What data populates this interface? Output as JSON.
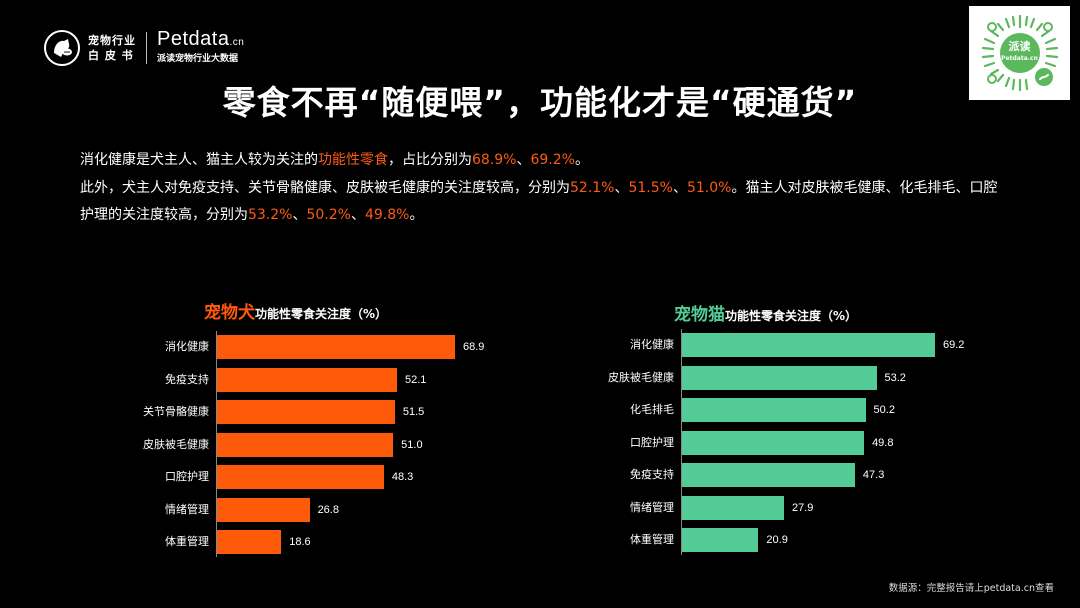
{
  "header": {
    "logo_line1": "宠物行业",
    "logo_line2": "白 皮 书",
    "brand_name": "Petdata",
    "brand_tld": ".cn",
    "brand_sub": "派读宠物行业大数据",
    "qr_label": "派读",
    "qr_sub": "Petdata.cn"
  },
  "title": "零食不再“随便喂”，功能化才是“硬通货”",
  "description": {
    "l1_a": "消化健康是犬主人、猫主人较为关注的",
    "l1_hl": "功能性零食",
    "l1_b": "，占比分别为",
    "l1_v1": "68.9%",
    "l1_sep": "、",
    "l1_v2": "69.2%",
    "l1_end": "。",
    "l2_a": "此外，犬主人对免疫支持、关节骨骼健康、皮肤被毛健康的关注度较高，分别为",
    "l2_v1": "52.1%",
    "l2_sep1": "、",
    "l2_v2": "51.5%",
    "l2_sep2": "、",
    "l2_v3": "51.0%",
    "l2_b": "。猫主人对皮肤被毛健康、化毛排毛、口腔护理的关注度较高，分别为",
    "l2_v4": "53.2%",
    "l2_sep3": "、",
    "l2_v5": "50.2%",
    "l2_sep4": "、",
    "l2_v6": "49.8%",
    "l2_end": "。"
  },
  "colors": {
    "dog": "#ff5a0a",
    "cat": "#52cb97",
    "highlight": "#ff5a14",
    "background": "#000000"
  },
  "chart_data": [
    {
      "type": "bar",
      "orientation": "horizontal",
      "title": "宠物犬功能性零食关注度（%）",
      "title_highlight": "宠物犬",
      "title_rest": "功能性零食关注度（%）",
      "categories": [
        "消化健康",
        "免疫支持",
        "关节骨骼健康",
        "皮肤被毛健康",
        "口腔护理",
        "情绪管理",
        "体重管理"
      ],
      "values": [
        68.9,
        52.1,
        51.5,
        51.0,
        48.3,
        26.8,
        18.6
      ],
      "labels": [
        "68.9",
        "52.1",
        "51.5",
        "51.0",
        "48.3",
        "26.8",
        "18.6"
      ],
      "unit": "%",
      "color": "#ff5a0a",
      "grid": false,
      "data_labels": true
    },
    {
      "type": "bar",
      "orientation": "horizontal",
      "title": "宠物猫功能性零食关注度（%）",
      "title_highlight": "宠物猫",
      "title_rest": "功能性零食关注度（%）",
      "categories": [
        "消化健康",
        "皮肤被毛健康",
        "化毛排毛",
        "口腔护理",
        "免疫支持",
        "情绪管理",
        "体重管理"
      ],
      "values": [
        69.2,
        53.2,
        50.2,
        49.8,
        47.3,
        27.9,
        20.9
      ],
      "labels": [
        "69.2",
        "53.2",
        "50.2",
        "49.8",
        "47.3",
        "27.9",
        "20.9"
      ],
      "unit": "%",
      "color": "#52cb97",
      "grid": false,
      "data_labels": true
    }
  ],
  "footer": "数据源：完整报告请上petdata.cn查看"
}
